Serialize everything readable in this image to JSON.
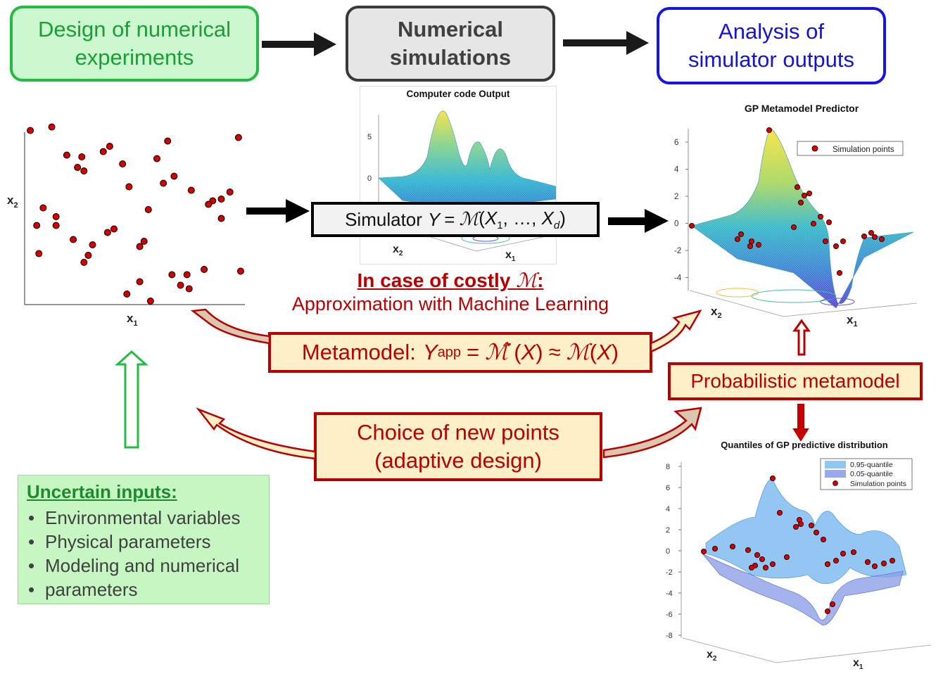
{
  "boxes": {
    "design": [
      "Design of numerical",
      "experiments"
    ],
    "simulations": [
      "Numerical",
      "simulations"
    ],
    "analysis": [
      "Analysis of",
      "simulator outputs"
    ],
    "simulator_prefix": "Simulator",
    "metamodel_prefix": "Metamodel:",
    "probabilistic": "Probabilistic metamodel",
    "choice": [
      "Choice of new points",
      "(adaptive design)"
    ]
  },
  "costly": {
    "line1": "In case of costly",
    "line2": "Approximation with Machine Learning"
  },
  "uncertain_inputs": {
    "title": "Uncertain inputs:",
    "items": [
      "Environmental variables",
      "Physical parameters",
      "Modeling and numerical",
      "parameters"
    ]
  },
  "charts": {
    "doe": {
      "xlabel": "x",
      "ylabel": "x",
      "x_sub": "1",
      "y_sub": "2"
    },
    "code_output": {
      "title": "Computer code Output",
      "yticks": [
        "5",
        "0"
      ],
      "x_axis": "x",
      "y_axis": "x"
    },
    "gp_predictor": {
      "title": "GP Metamodel Predictor",
      "yticks": [
        "6",
        "4",
        "2",
        "0",
        "-2",
        "-4"
      ],
      "legend": "Simulation points",
      "x_axis": "x",
      "y_axis": "x"
    },
    "quantiles": {
      "title": "Quantiles of GP predictive distribution",
      "yticks": [
        "8",
        "6",
        "4",
        "2",
        "0",
        "-2",
        "-4",
        "-6",
        "-8"
      ],
      "legend": [
        "0.95-quantile",
        "0.05-quantile",
        "Simulation points"
      ],
      "x_axis": "x",
      "y_axis": "x"
    }
  },
  "colors": {
    "green": "#22bb44",
    "blue": "#1414e6",
    "red": "#b80000",
    "point": "#d40000"
  },
  "chart_data": [
    {
      "type": "scatter",
      "points": [
        [
          0.01,
          0.97
        ],
        [
          0.11,
          0.99
        ],
        [
          0.18,
          0.83
        ],
        [
          0.23,
          0.76
        ],
        [
          0.26,
          0.74
        ],
        [
          0.25,
          0.82
        ],
        [
          0.35,
          0.85
        ],
        [
          0.38,
          0.88
        ],
        [
          0.44,
          0.78
        ],
        [
          0.47,
          0.65
        ],
        [
          0.6,
          0.81
        ],
        [
          0.65,
          0.91
        ],
        [
          0.68,
          0.71
        ],
        [
          0.63,
          0.67
        ],
        [
          0.76,
          0.63
        ],
        [
          0.98,
          0.93
        ],
        [
          0.94,
          0.62
        ],
        [
          0.9,
          0.58
        ],
        [
          0.86,
          0.57
        ],
        [
          0.84,
          0.55
        ],
        [
          0.07,
          0.53
        ],
        [
          0.13,
          0.48
        ],
        [
          0.04,
          0.43
        ],
        [
          0.13,
          0.43
        ],
        [
          0.21,
          0.35
        ],
        [
          0.3,
          0.32
        ],
        [
          0.37,
          0.39
        ],
        [
          0.4,
          0.41
        ],
        [
          0.56,
          0.52
        ],
        [
          0.9,
          0.47
        ],
        [
          0.05,
          0.27
        ],
        [
          0.26,
          0.22
        ],
        [
          0.28,
          0.26
        ],
        [
          0.54,
          0.34
        ],
        [
          0.52,
          0.31
        ],
        [
          0.82,
          0.18
        ],
        [
          0.99,
          0.17
        ],
        [
          0.52,
          0.11
        ],
        [
          0.67,
          0.15
        ],
        [
          0.71,
          0.09
        ],
        [
          0.75,
          0.07
        ],
        [
          0.74,
          0.15
        ],
        [
          0.46,
          0.04
        ],
        [
          0.57,
          0.0
        ]
      ]
    }
  ]
}
